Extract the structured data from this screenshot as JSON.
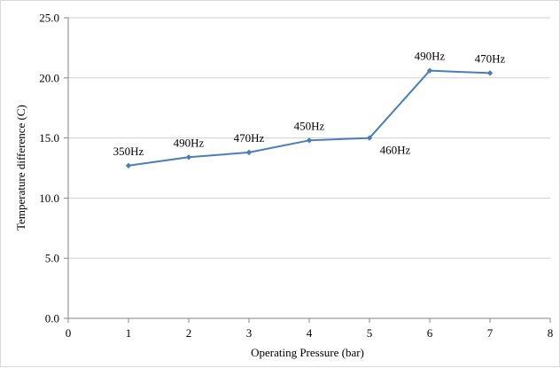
{
  "chart_data": {
    "type": "line",
    "title": "",
    "xlabel": "Operating Pressure (bar)",
    "ylabel": "Temperature difference (C)",
    "xlim": [
      0,
      8
    ],
    "ylim": [
      0,
      25
    ],
    "x_ticks": [
      "0",
      "1",
      "2",
      "3",
      "4",
      "5",
      "6",
      "7",
      "8"
    ],
    "y_ticks": [
      "0.0",
      "5.0",
      "10.0",
      "15.0",
      "20.0",
      "25.0"
    ],
    "grid": "horizontal",
    "legend": "none",
    "series": [
      {
        "color": "#4a7ebb",
        "points": [
          {
            "x": 1,
            "y": 12.7,
            "label": "350Hz"
          },
          {
            "x": 2,
            "y": 13.4,
            "label": "490Hz"
          },
          {
            "x": 3,
            "y": 13.8,
            "label": "470Hz"
          },
          {
            "x": 4,
            "y": 14.8,
            "label": "450Hz"
          },
          {
            "x": 5,
            "y": 15.0,
            "label": "460Hz"
          },
          {
            "x": 6,
            "y": 20.6,
            "label": "490Hz"
          },
          {
            "x": 7,
            "y": 20.4,
            "label": "470Hz"
          }
        ]
      }
    ]
  }
}
